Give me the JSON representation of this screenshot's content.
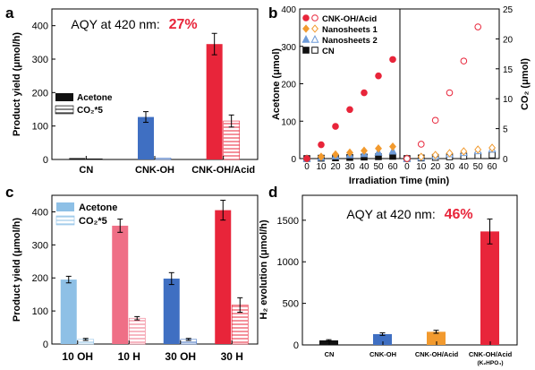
{
  "panel_letters": [
    "a",
    "b",
    "c",
    "d"
  ],
  "colors": {
    "acetone": "#111111",
    "cn_blue": "#3f6fc2",
    "acid_red": "#e8253a",
    "pink": "#ef6f86",
    "light_blue": "#8ec0e6",
    "orange": "#f29a2e",
    "triangle_blue": "#6e9bd8",
    "annotation_red": "#e8253a"
  },
  "chart_data": [
    {
      "panel": "a",
      "type": "bar",
      "annotation": {
        "prefix": "AQY at 420 nm:",
        "value": "27%"
      },
      "categories": [
        "CN",
        "CNK-OH",
        "CNK-OH/Acid"
      ],
      "series": [
        {
          "name": "Acetone",
          "values": [
            4,
            127,
            345
          ],
          "errors": [
            0,
            16,
            32
          ],
          "style": "solid"
        },
        {
          "name": "CO₂*5",
          "values": [
            2,
            4,
            115
          ],
          "errors": [
            0,
            0,
            18
          ],
          "style": "hatched"
        }
      ],
      "ylabel": "Product yield  (μmol/h)",
      "ylim": [
        0,
        450
      ],
      "yticks": [
        0,
        100,
        200,
        300,
        400
      ],
      "legend": "middle-left"
    },
    {
      "panel": "b",
      "type": "scatter",
      "xlabel": "Irradiation Time (min)",
      "ylabel_left": "Acetone (μmol)",
      "ylabel_right": "CO₂ (μmol)",
      "left_ylim": [
        0,
        400
      ],
      "left_yticks": [
        0,
        100,
        200,
        300,
        400
      ],
      "right_ylim": [
        0,
        25
      ],
      "right_yticks": [
        0,
        5,
        10,
        15,
        20,
        25
      ],
      "xlim_left": [
        -5,
        65
      ],
      "xlim_right": [
        -5,
        65
      ],
      "xticks": [
        0,
        10,
        20,
        30,
        40,
        50,
        60
      ],
      "legend": "top-left",
      "series": [
        {
          "name": "CNK-OH/Acid",
          "marker": "circle",
          "x": [
            0,
            10,
            20,
            30,
            40,
            50,
            60
          ],
          "acetone": [
            0,
            37,
            86,
            131,
            176,
            221,
            265
          ],
          "co2": [
            0,
            2.4,
            6.4,
            11,
            16.3,
            22,
            null
          ]
        },
        {
          "name": "Nanosheets 1",
          "marker": "diamond",
          "x": [
            0,
            10,
            20,
            30,
            40,
            50,
            60
          ],
          "acetone": [
            0,
            5,
            11,
            16,
            21,
            27,
            32
          ],
          "co2": [
            0,
            0.3,
            0.6,
            0.9,
            1.2,
            1.5,
            1.8
          ]
        },
        {
          "name": "Nanosheets 2",
          "marker": "triangle",
          "x": [
            0,
            10,
            20,
            30,
            40,
            50,
            60
          ],
          "acetone": [
            0,
            3,
            7,
            10,
            13,
            17,
            20
          ],
          "co2": [
            0,
            0.2,
            0.5,
            0.8,
            1.0,
            1.3,
            1.6
          ]
        },
        {
          "name": "CN",
          "marker": "square",
          "x": [
            0,
            10,
            20,
            30,
            40,
            50,
            60
          ],
          "acetone": [
            0,
            1,
            2,
            3,
            4,
            5,
            6
          ],
          "co2": [
            0,
            0.1,
            0.2,
            0.3,
            0.4,
            0.5,
            0.6
          ]
        }
      ]
    },
    {
      "panel": "c",
      "type": "bar",
      "categories": [
        "10 OH",
        "10 H",
        "30 OH",
        "30 H"
      ],
      "series": [
        {
          "name": "Acetone",
          "values": [
            195,
            358,
            198,
            405
          ],
          "errors": [
            10,
            20,
            18,
            30
          ],
          "style": "solid",
          "colors": [
            "#8ec0e6",
            "#ef6f86",
            "#3f6fc2",
            "#e8253a"
          ]
        },
        {
          "name": "CO₂*5",
          "values": [
            14,
            78,
            14,
            118
          ],
          "errors": [
            3,
            5,
            3,
            22
          ],
          "style": "hatched",
          "colors": [
            "#8ec0e6",
            "#ef6f86",
            "#3f6fc2",
            "#e8253a"
          ]
        }
      ],
      "ylabel": "Product yield  (μmol/h)",
      "ylim": [
        0,
        450
      ],
      "yticks": [
        0,
        100,
        200,
        300,
        400
      ],
      "legend": "top-left"
    },
    {
      "panel": "d",
      "type": "bar",
      "annotation": {
        "prefix": "AQY at 420 nm:",
        "value": "46%"
      },
      "categories": [
        "CN",
        "CNK-OH",
        "CNK-OH/Acid",
        "CNK-OH/Acid"
      ],
      "category_sublabels": [
        "",
        "",
        "",
        "(K₂HPO₄)"
      ],
      "values": [
        55,
        130,
        158,
        1365
      ],
      "errors": [
        8,
        15,
        18,
        150
      ],
      "colors": [
        "#111111",
        "#3f6fc2",
        "#f29a2e",
        "#e8253a"
      ],
      "ylabel": "H₂ evolution  (μmol/h)",
      "ylim": [
        0,
        1800
      ],
      "yticks": [
        0,
        500,
        1000,
        1500
      ]
    }
  ]
}
